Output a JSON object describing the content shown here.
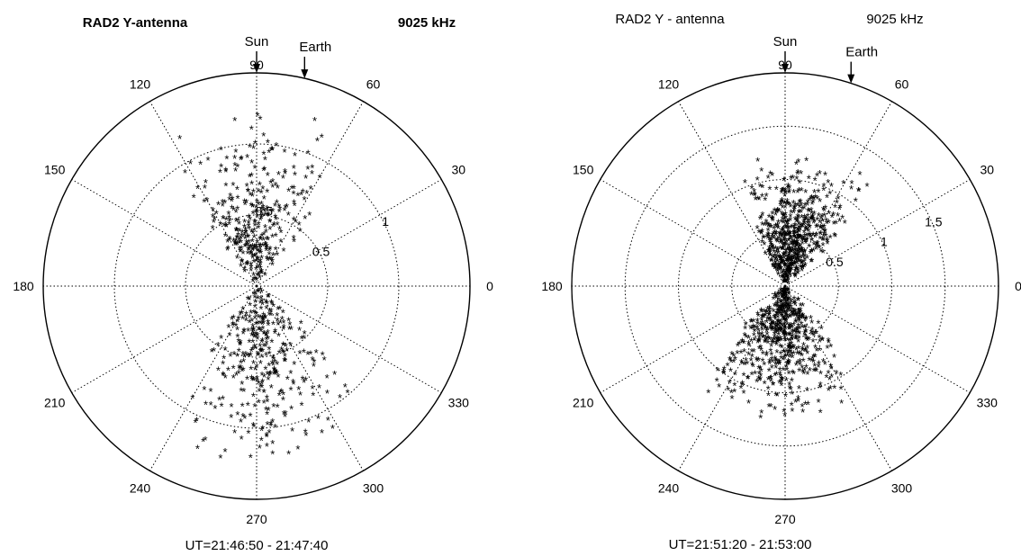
{
  "chart_data": [
    {
      "type": "scatter",
      "subtype": "polar",
      "title_left": "RAD2  Y-antenna",
      "title_right": "9025 kHz",
      "title_bold": true,
      "caption": "UT=21:46:50 - 21:47:40",
      "markers": [
        {
          "label": "Sun",
          "angle_deg": 90
        },
        {
          "label": "Earth",
          "angle_deg": 77
        }
      ],
      "angle_ticks": [
        "0",
        "30",
        "60",
        "90",
        "120",
        "150",
        "180",
        "210",
        "240",
        "270",
        "300",
        "330"
      ],
      "r_max": 1.5,
      "r_ticks": [
        {
          "r": 0.5,
          "label": "0.5",
          "angle_deg": 25
        },
        {
          "r": 1.0,
          "label": "1",
          "angle_deg": 25
        },
        {
          "r": 0.5,
          "label": "0.5",
          "angle_deg": 84
        }
      ],
      "grid": true,
      "marker": "*",
      "lobes": [
        {
          "angle_deg": 100,
          "r": 1.2,
          "points": 180,
          "spread": 0.12
        },
        {
          "angle_deg": 78,
          "r": 1.2,
          "points": 160,
          "spread": 0.12
        },
        {
          "angle_deg": 262,
          "r": 1.35,
          "points": 180,
          "spread": 0.12
        },
        {
          "angle_deg": 290,
          "r": 1.3,
          "points": 170,
          "spread": 0.12
        }
      ]
    },
    {
      "type": "scatter",
      "subtype": "polar",
      "title_left": "RAD2 Y - antenna",
      "title_right": "9025 kHz",
      "title_bold": false,
      "caption": "UT=21:51:20 - 21:53:00",
      "markers": [
        {
          "label": "Sun",
          "angle_deg": 90
        },
        {
          "label": "Earth",
          "angle_deg": 72
        }
      ],
      "angle_ticks": [
        "0",
        "30",
        "60",
        "90",
        "120",
        "150",
        "180",
        "210",
        "240",
        "270",
        "300",
        "330"
      ],
      "r_max": 2.0,
      "r_ticks": [
        {
          "r": 0.5,
          "label": "0.5",
          "angle_deg": 22
        },
        {
          "r": 1.0,
          "label": "1",
          "angle_deg": 22
        },
        {
          "r": 1.5,
          "label": "1.5",
          "angle_deg": 22
        },
        {
          "r": 0.5,
          "label": "0.5",
          "angle_deg": 84
        }
      ],
      "grid": true,
      "marker": "*",
      "lobes": [
        {
          "angle_deg": 92,
          "r": 1.2,
          "points": 340,
          "spread": 0.16
        },
        {
          "angle_deg": 70,
          "r": 1.25,
          "points": 300,
          "spread": 0.16
        },
        {
          "angle_deg": 252,
          "r": 1.3,
          "points": 320,
          "spread": 0.16
        },
        {
          "angle_deg": 283,
          "r": 1.25,
          "points": 300,
          "spread": 0.16
        }
      ]
    }
  ]
}
